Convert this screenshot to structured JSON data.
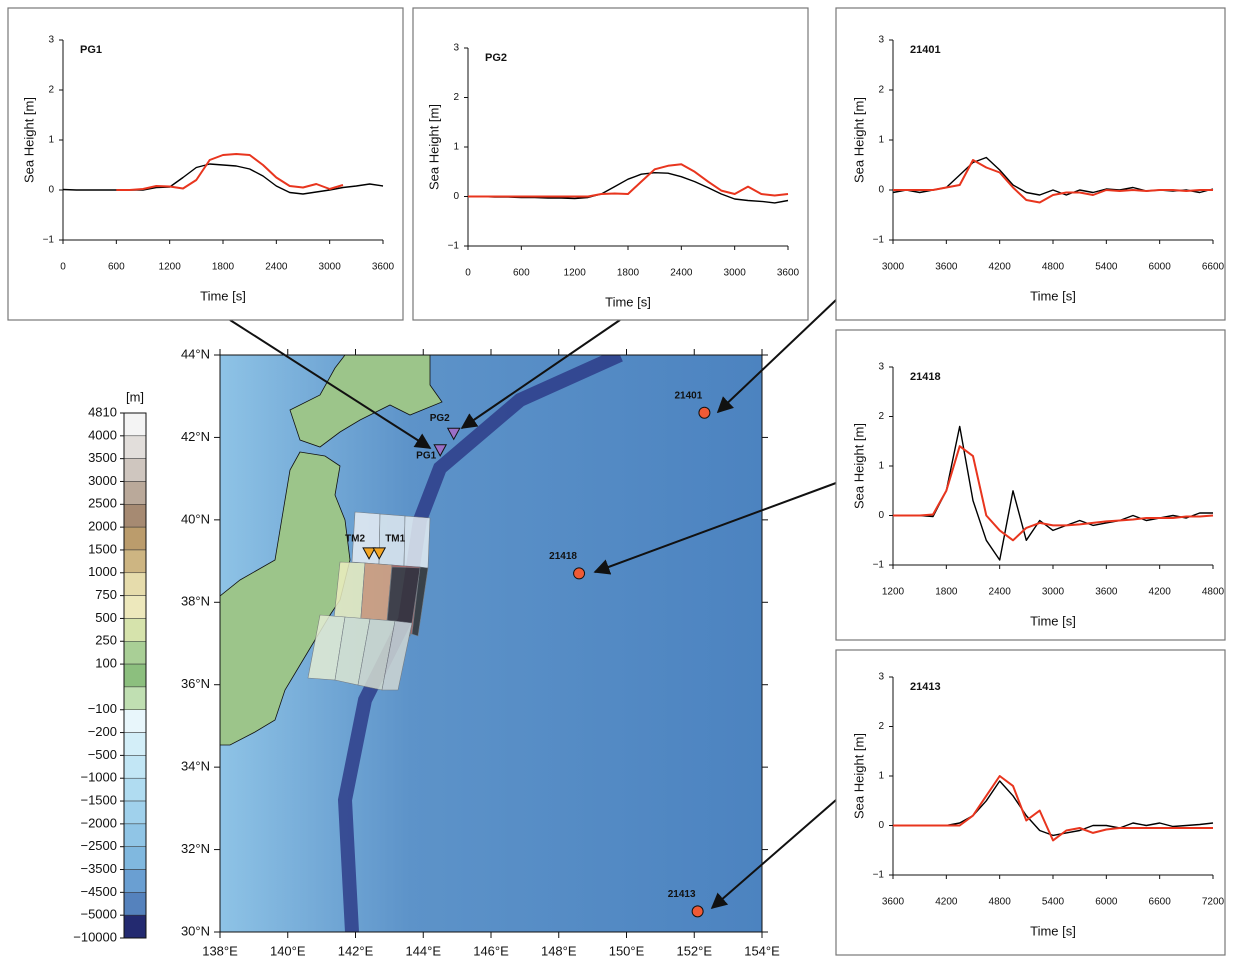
{
  "chart_data": [
    {
      "type": "line",
      "title": "PG1",
      "xlabel": "Time [s]",
      "ylabel": "Sea Height [m]",
      "xlim": [
        0,
        3600
      ],
      "ylim": [
        -1,
        3
      ],
      "xticks": [
        0,
        600,
        1200,
        1800,
        2400,
        3000,
        3600
      ],
      "yticks": [
        {
          "value": -1,
          "label": "−1"
        },
        0,
        1,
        2,
        3
      ],
      "x": [
        0,
        150,
        300,
        450,
        600,
        750,
        900,
        1050,
        1200,
        1350,
        1500,
        1650,
        1800,
        1950,
        2100,
        2250,
        2400,
        2550,
        2700,
        2850,
        3000,
        3150,
        3300,
        3450,
        3600
      ],
      "series": [
        {
          "color": "#000000",
          "values": [
            0.01,
            0,
            0,
            0,
            0,
            0,
            0,
            0.05,
            0.06,
            0.25,
            0.45,
            0.52,
            0.5,
            0.48,
            0.42,
            0.28,
            0.08,
            -0.05,
            -0.08,
            -0.04,
            0,
            0.05,
            0.08,
            0.12,
            0.08
          ]
        },
        {
          "color": "#e8351e",
          "values": [
            null,
            null,
            null,
            null,
            0,
            0,
            0.02,
            0.08,
            0.07,
            0.03,
            0.2,
            0.6,
            0.7,
            0.72,
            0.7,
            0.5,
            0.25,
            0.08,
            0.05,
            0.12,
            0.02,
            0.1,
            null,
            null,
            null
          ]
        }
      ]
    },
    {
      "type": "line",
      "title": "PG2",
      "xlabel": "Time [s]",
      "ylabel": "Sea Height [m]",
      "xlim": [
        0,
        3600
      ],
      "ylim": [
        -1,
        3
      ],
      "xticks": [
        0,
        600,
        1200,
        1800,
        2400,
        3000,
        3600
      ],
      "yticks": [
        {
          "value": -1,
          "label": "−1"
        },
        0,
        1,
        2,
        3
      ],
      "x": [
        0,
        150,
        300,
        450,
        600,
        750,
        900,
        1050,
        1200,
        1350,
        1500,
        1650,
        1800,
        1950,
        2100,
        2250,
        2400,
        2550,
        2700,
        2850,
        3000,
        3150,
        3300,
        3450,
        3600
      ],
      "series": [
        {
          "color": "#000000",
          "values": [
            0,
            0,
            -0.01,
            -0.01,
            -0.02,
            -0.02,
            -0.03,
            -0.03,
            -0.04,
            -0.02,
            0.05,
            0.2,
            0.35,
            0.45,
            0.48,
            0.47,
            0.4,
            0.3,
            0.18,
            0.05,
            -0.05,
            -0.08,
            -0.1,
            -0.13,
            -0.08
          ]
        },
        {
          "color": "#e8351e",
          "values": [
            0,
            0,
            0,
            0,
            0,
            0,
            0,
            0,
            0,
            0,
            0.05,
            0.06,
            0.05,
            0.3,
            0.55,
            0.62,
            0.65,
            0.5,
            0.3,
            0.12,
            0.05,
            0.2,
            0.05,
            0.02,
            0.05
          ]
        }
      ]
    },
    {
      "type": "line",
      "title": "21401",
      "xlabel": "Time [s]",
      "ylabel": "Sea Height [m]",
      "xlim": [
        3000,
        6600
      ],
      "ylim": [
        -1,
        3
      ],
      "xticks": [
        3000,
        3600,
        4200,
        4800,
        5400,
        6000,
        6600
      ],
      "yticks": [
        {
          "value": -1,
          "label": "−1"
        },
        0,
        1,
        2,
        3
      ],
      "x": [
        3000,
        3150,
        3300,
        3450,
        3600,
        3750,
        3900,
        4050,
        4200,
        4350,
        4500,
        4650,
        4800,
        4950,
        5100,
        5250,
        5400,
        5550,
        5700,
        5850,
        6000,
        6150,
        6300,
        6450,
        6600
      ],
      "series": [
        {
          "color": "#000000",
          "values": [
            -0.05,
            0,
            -0.05,
            0,
            0.05,
            0.3,
            0.55,
            0.65,
            0.4,
            0.1,
            -0.05,
            -0.1,
            0,
            -0.1,
            0,
            -0.05,
            0.02,
            0,
            0.05,
            -0.02,
            0,
            -0.02,
            0,
            -0.05,
            0.02
          ]
        },
        {
          "color": "#e8351e",
          "values": [
            0,
            0,
            0,
            0,
            0.05,
            0.1,
            0.6,
            0.45,
            0.35,
            0.05,
            -0.2,
            -0.25,
            -0.1,
            -0.05,
            -0.05,
            -0.1,
            0,
            -0.02,
            0,
            -0.02,
            0,
            0,
            -0.02,
            0,
            0
          ]
        }
      ]
    },
    {
      "type": "line",
      "title": "21418",
      "xlabel": "Time [s]",
      "ylabel": "Sea Height [m]",
      "xlim": [
        1200,
        4800
      ],
      "ylim": [
        -1,
        3
      ],
      "xticks": [
        1200,
        1800,
        2400,
        3000,
        3600,
        4200,
        4800
      ],
      "yticks": [
        {
          "value": -1,
          "label": "−1"
        },
        0,
        1,
        2,
        3
      ],
      "x": [
        1200,
        1350,
        1500,
        1650,
        1800,
        1950,
        2100,
        2250,
        2400,
        2550,
        2700,
        2850,
        3000,
        3150,
        3300,
        3450,
        3600,
        3750,
        3900,
        4050,
        4200,
        4350,
        4500,
        4650,
        4800
      ],
      "series": [
        {
          "color": "#000000",
          "values": [
            0,
            0,
            0,
            -0.02,
            0.5,
            1.8,
            0.3,
            -0.5,
            -0.9,
            0.5,
            -0.5,
            -0.1,
            -0.3,
            -0.2,
            -0.1,
            -0.2,
            -0.15,
            -0.1,
            0,
            -0.1,
            -0.05,
            0,
            -0.05,
            0.05,
            0.05
          ]
        },
        {
          "color": "#e8351e",
          "values": [
            0,
            0,
            0,
            0.02,
            0.5,
            1.4,
            1.2,
            0,
            -0.3,
            -0.5,
            -0.25,
            -0.15,
            -0.2,
            -0.2,
            -0.18,
            -0.15,
            -0.12,
            -0.1,
            -0.08,
            -0.05,
            -0.05,
            -0.05,
            -0.02,
            -0.02,
            0
          ]
        }
      ]
    },
    {
      "type": "line",
      "title": "21413",
      "xlabel": "Time [s]",
      "ylabel": "Sea Height [m]",
      "xlim": [
        3600,
        7200
      ],
      "ylim": [
        -1,
        3
      ],
      "xticks": [
        3600,
        4200,
        4800,
        5400,
        6000,
        6600,
        7200
      ],
      "yticks": [
        {
          "value": -1,
          "label": "−1"
        },
        0,
        1,
        2,
        3
      ],
      "x": [
        3600,
        3750,
        3900,
        4050,
        4200,
        4350,
        4500,
        4650,
        4800,
        4950,
        5100,
        5250,
        5400,
        5550,
        5700,
        5850,
        6000,
        6150,
        6300,
        6450,
        6600,
        6750,
        6900,
        7050,
        7200
      ],
      "series": [
        {
          "color": "#000000",
          "values": [
            0,
            0,
            0,
            0,
            0,
            0.05,
            0.2,
            0.5,
            0.9,
            0.6,
            0.2,
            -0.1,
            -0.2,
            -0.15,
            -0.1,
            0,
            0,
            -0.05,
            0.05,
            0,
            0.05,
            -0.02,
            0,
            0.02,
            0.05
          ]
        },
        {
          "color": "#e8351e",
          "values": [
            0,
            0,
            0,
            0,
            0,
            0,
            0.2,
            0.6,
            1.0,
            0.8,
            0.1,
            0.3,
            -0.3,
            -0.1,
            -0.05,
            -0.15,
            -0.08,
            -0.05,
            -0.05,
            -0.05,
            -0.05,
            -0.05,
            -0.05,
            -0.05,
            -0.05
          ]
        }
      ]
    },
    {
      "type": "map",
      "xlim": [
        138,
        154
      ],
      "ylim": [
        30,
        44
      ],
      "xticks": [
        {
          "value": 138,
          "label": "138°E"
        },
        {
          "value": 140,
          "label": "140°E"
        },
        {
          "value": 142,
          "label": "142°E"
        },
        {
          "value": 144,
          "label": "144°E"
        },
        {
          "value": 146,
          "label": "146°E"
        },
        {
          "value": 148,
          "label": "148°E"
        },
        {
          "value": 150,
          "label": "150°E"
        },
        {
          "value": 152,
          "label": "152°E"
        },
        {
          "value": 154,
          "label": "154°E"
        }
      ],
      "yticks": [
        {
          "value": 30,
          "label": "30°N"
        },
        {
          "value": 32,
          "label": "32°N"
        },
        {
          "value": 34,
          "label": "34°N"
        },
        {
          "value": 36,
          "label": "36°N"
        },
        {
          "value": 38,
          "label": "38°N"
        },
        {
          "value": 40,
          "label": "40°N"
        },
        {
          "value": 42,
          "label": "42°N"
        },
        {
          "value": 44,
          "label": "44°N"
        }
      ],
      "stations": [
        {
          "label": "PG1",
          "lon": 144.5,
          "lat": 41.7,
          "marker": "triangle",
          "color": "#9b6fc6"
        },
        {
          "label": "PG2",
          "lon": 144.9,
          "lat": 42.1,
          "marker": "triangle",
          "color": "#9b6fc6"
        },
        {
          "label": "TM2",
          "lon": 142.4,
          "lat": 39.2,
          "marker": "triangle",
          "color": "#f5a623"
        },
        {
          "label": "TM1",
          "lon": 142.7,
          "lat": 39.2,
          "marker": "triangle",
          "color": "#f5a623"
        },
        {
          "label": "21401",
          "lon": 152.3,
          "lat": 42.6,
          "marker": "circle",
          "color": "#ef5a35"
        },
        {
          "label": "21418",
          "lon": 148.6,
          "lat": 38.7,
          "marker": "circle",
          "color": "#ef5a35"
        },
        {
          "label": "21413",
          "lon": 152.1,
          "lat": 30.5,
          "marker": "circle",
          "color": "#ef5a35"
        }
      ],
      "colorbar": {
        "title": "[m]",
        "ticks": [
          4810,
          4000,
          3500,
          3000,
          2500,
          2000,
          1500,
          1000,
          750,
          500,
          250,
          100,
          {
            "value": -100,
            "label": "−100"
          },
          {
            "value": -200,
            "label": "−200"
          },
          {
            "value": -500,
            "label": "−500"
          },
          {
            "value": -1000,
            "label": "−1000"
          },
          {
            "value": -1500,
            "label": "−1500"
          },
          {
            "value": -2000,
            "label": "−2000"
          },
          {
            "value": -2500,
            "label": "−2500"
          },
          {
            "value": -3500,
            "label": "−3500"
          },
          {
            "value": -4500,
            "label": "−4500"
          },
          {
            "value": -5000,
            "label": "−5000"
          },
          {
            "value": -10000,
            "label": "−10000"
          }
        ],
        "colors": [
          "#f4f4f4",
          "#e2dedb",
          "#cfc6bf",
          "#baa99a",
          "#a68a72",
          "#bb9c6c",
          "#cdb582",
          "#e6dcac",
          "#ede8bc",
          "#d6e3ac",
          "#a9cf96",
          "#8cbf7e",
          "#c0dfb2",
          "#e8f6fb",
          "#d3eef8",
          "#c2e6f5",
          "#b0dcf1",
          "#a0d1ec",
          "#90c5e6",
          "#80b8df",
          "#6a9fd2",
          "#5582bd",
          "#232a70"
        ]
      }
    }
  ]
}
